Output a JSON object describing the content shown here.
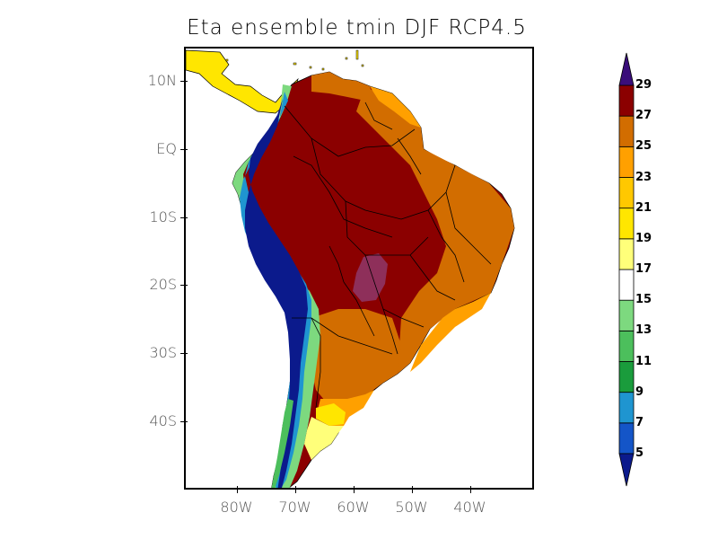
{
  "title": "Eta ensemble tmin DJF RCP4.5",
  "lat_labels": [
    {
      "text": "10N",
      "lat": 10
    },
    {
      "text": "EQ",
      "lat": 0
    },
    {
      "text": "10S",
      "lat": -10
    },
    {
      "text": "20S",
      "lat": -20
    },
    {
      "text": "30S",
      "lat": -30
    },
    {
      "text": "40S",
      "lat": -40
    }
  ],
  "lon_labels": [
    {
      "text": "80W",
      "lon": -80
    },
    {
      "text": "70W",
      "lon": -70
    },
    {
      "text": "60W",
      "lon": -60
    },
    {
      "text": "50W",
      "lon": -50
    },
    {
      "text": "40W",
      "lon": -40
    }
  ],
  "extent": {
    "lon_min": -89,
    "lon_max": -29,
    "lat_min": -50,
    "lat_max": 15
  },
  "colorbar": {
    "levels": [
      "5",
      "7",
      "9",
      "11",
      "13",
      "15",
      "17",
      "19",
      "21",
      "23",
      "25",
      "27",
      "29"
    ],
    "colors": [
      "#0b1a8c",
      "#1455c8",
      "#1f95d0",
      "#1a9c3c",
      "#4cbf5c",
      "#7dd97f",
      "#ffffff",
      "#ffff7a",
      "#ffe600",
      "#ffc800",
      "#ffa000",
      "#d26d00",
      "#8b0000",
      "#8e2f5a",
      "#7b5cb8",
      "#3a0e7a"
    ],
    "under_color": "#0b1a8c",
    "over_color": "#3a0e7a"
  }
}
